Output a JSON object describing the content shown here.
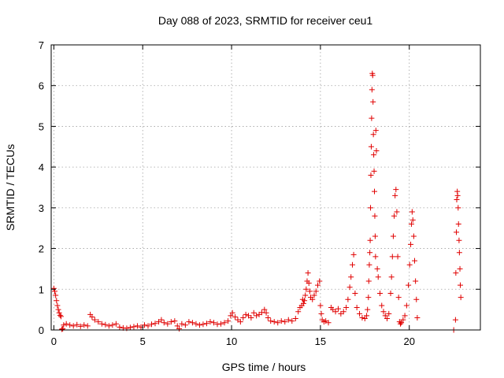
{
  "chart_data": {
    "type": "scatter",
    "title": "Day 088 of 2023, SRMTID for receiver ceu1",
    "xlabel": "GPS time / hours",
    "ylabel": "SRMTID / TECUs",
    "xlim": [
      -0.15,
      24
    ],
    "ylim": [
      0,
      7
    ],
    "xticks": [
      0,
      5,
      10,
      15,
      20
    ],
    "yticks": [
      0,
      1,
      2,
      3,
      4,
      5,
      6,
      7
    ],
    "grid": true,
    "marker": "plus",
    "color": "#e00000",
    "series": [
      {
        "name": "ceu1",
        "points": [
          [
            0.0,
            1.02
          ],
          [
            0.05,
            0.95
          ],
          [
            0.1,
            0.85
          ],
          [
            0.15,
            0.72
          ],
          [
            0.2,
            0.6
          ],
          [
            0.25,
            0.5
          ],
          [
            0.3,
            0.42
          ],
          [
            0.35,
            0.36
          ],
          [
            0.4,
            0.33
          ],
          [
            0.45,
            0.02
          ],
          [
            0.5,
            0.03
          ],
          [
            0.55,
            0.12
          ],
          [
            0.7,
            0.15
          ],
          [
            0.9,
            0.12
          ],
          [
            1.1,
            0.1
          ],
          [
            1.3,
            0.13
          ],
          [
            1.5,
            0.09
          ],
          [
            1.7,
            0.12
          ],
          [
            1.9,
            0.1
          ],
          [
            2.05,
            0.38
          ],
          [
            2.15,
            0.32
          ],
          [
            2.3,
            0.25
          ],
          [
            2.5,
            0.2
          ],
          [
            2.7,
            0.15
          ],
          [
            2.9,
            0.13
          ],
          [
            3.1,
            0.1
          ],
          [
            3.3,
            0.12
          ],
          [
            3.5,
            0.15
          ],
          [
            3.7,
            0.07
          ],
          [
            3.9,
            0.05
          ],
          [
            4.1,
            0.04
          ],
          [
            4.3,
            0.06
          ],
          [
            4.5,
            0.08
          ],
          [
            4.7,
            0.1
          ],
          [
            4.9,
            0.07
          ],
          [
            5.1,
            0.12
          ],
          [
            5.3,
            0.1
          ],
          [
            5.5,
            0.14
          ],
          [
            5.7,
            0.16
          ],
          [
            5.9,
            0.2
          ],
          [
            6.05,
            0.25
          ],
          [
            6.2,
            0.18
          ],
          [
            6.4,
            0.15
          ],
          [
            6.6,
            0.2
          ],
          [
            6.8,
            0.22
          ],
          [
            6.95,
            0.1
          ],
          [
            7.05,
            0.03
          ],
          [
            7.2,
            0.15
          ],
          [
            7.4,
            0.12
          ],
          [
            7.6,
            0.2
          ],
          [
            7.8,
            0.18
          ],
          [
            8.0,
            0.15
          ],
          [
            8.2,
            0.12
          ],
          [
            8.4,
            0.14
          ],
          [
            8.6,
            0.16
          ],
          [
            8.8,
            0.2
          ],
          [
            9.0,
            0.18
          ],
          [
            9.2,
            0.14
          ],
          [
            9.4,
            0.15
          ],
          [
            9.6,
            0.18
          ],
          [
            9.8,
            0.22
          ],
          [
            9.95,
            0.35
          ],
          [
            10.05,
            0.42
          ],
          [
            10.2,
            0.32
          ],
          [
            10.35,
            0.25
          ],
          [
            10.5,
            0.2
          ],
          [
            10.65,
            0.3
          ],
          [
            10.8,
            0.38
          ],
          [
            10.95,
            0.35
          ],
          [
            11.1,
            0.3
          ],
          [
            11.25,
            0.42
          ],
          [
            11.4,
            0.35
          ],
          [
            11.55,
            0.38
          ],
          [
            11.7,
            0.43
          ],
          [
            11.85,
            0.5
          ],
          [
            11.95,
            0.42
          ],
          [
            12.05,
            0.3
          ],
          [
            12.2,
            0.22
          ],
          [
            12.4,
            0.2
          ],
          [
            12.6,
            0.18
          ],
          [
            12.8,
            0.22
          ],
          [
            13.0,
            0.2
          ],
          [
            13.2,
            0.25
          ],
          [
            13.4,
            0.22
          ],
          [
            13.6,
            0.28
          ],
          [
            13.75,
            0.45
          ],
          [
            13.85,
            0.55
          ],
          [
            13.95,
            0.6
          ],
          [
            14.0,
            0.75
          ],
          [
            14.05,
            0.65
          ],
          [
            14.1,
            0.72
          ],
          [
            14.15,
            0.85
          ],
          [
            14.2,
            1.0
          ],
          [
            14.25,
            1.2
          ],
          [
            14.3,
            1.4
          ],
          [
            14.35,
            1.15
          ],
          [
            14.4,
            0.95
          ],
          [
            14.45,
            0.8
          ],
          [
            14.55,
            0.75
          ],
          [
            14.65,
            0.85
          ],
          [
            14.75,
            0.95
          ],
          [
            14.85,
            1.1
          ],
          [
            14.95,
            1.2
          ],
          [
            15.0,
            0.6
          ],
          [
            15.05,
            0.4
          ],
          [
            15.1,
            0.25
          ],
          [
            15.2,
            0.2
          ],
          [
            15.3,
            0.22
          ],
          [
            15.45,
            0.18
          ],
          [
            15.6,
            0.55
          ],
          [
            15.7,
            0.5
          ],
          [
            15.85,
            0.45
          ],
          [
            16.0,
            0.52
          ],
          [
            16.15,
            0.4
          ],
          [
            16.3,
            0.45
          ],
          [
            16.45,
            0.55
          ],
          [
            16.55,
            0.75
          ],
          [
            16.65,
            1.05
          ],
          [
            16.72,
            1.3
          ],
          [
            16.8,
            1.6
          ],
          [
            16.87,
            1.85
          ],
          [
            16.95,
            0.9
          ],
          [
            17.05,
            0.55
          ],
          [
            17.2,
            0.4
          ],
          [
            17.35,
            0.3
          ],
          [
            17.5,
            0.28
          ],
          [
            17.6,
            0.35
          ],
          [
            17.65,
            0.5
          ],
          [
            17.7,
            0.8
          ],
          [
            17.72,
            1.2
          ],
          [
            17.75,
            1.6
          ],
          [
            17.78,
            1.9
          ],
          [
            17.8,
            2.2
          ],
          [
            17.82,
            3.0
          ],
          [
            17.84,
            3.8
          ],
          [
            17.86,
            4.5
          ],
          [
            17.88,
            5.2
          ],
          [
            17.9,
            5.9
          ],
          [
            17.92,
            6.3
          ],
          [
            17.94,
            6.25
          ],
          [
            17.96,
            5.6
          ],
          [
            17.98,
            4.8
          ],
          [
            18.0,
            4.3
          ],
          [
            18.02,
            3.9
          ],
          [
            18.04,
            3.4
          ],
          [
            18.06,
            2.8
          ],
          [
            18.08,
            2.3
          ],
          [
            18.1,
            1.8
          ],
          [
            18.12,
            4.9
          ],
          [
            18.15,
            4.4
          ],
          [
            18.2,
            1.5
          ],
          [
            18.25,
            1.3
          ],
          [
            18.35,
            0.9
          ],
          [
            18.45,
            0.6
          ],
          [
            18.55,
            0.45
          ],
          [
            18.65,
            0.35
          ],
          [
            18.75,
            0.28
          ],
          [
            18.85,
            0.4
          ],
          [
            18.95,
            0.9
          ],
          [
            19.0,
            1.3
          ],
          [
            19.05,
            1.8
          ],
          [
            19.1,
            2.3
          ],
          [
            19.15,
            2.8
          ],
          [
            19.2,
            3.3
          ],
          [
            19.25,
            3.45
          ],
          [
            19.3,
            2.9
          ],
          [
            19.35,
            1.8
          ],
          [
            19.4,
            0.8
          ],
          [
            19.45,
            0.2
          ],
          [
            19.5,
            0.15
          ],
          [
            19.55,
            0.18
          ],
          [
            19.65,
            0.25
          ],
          [
            19.75,
            0.35
          ],
          [
            19.85,
            0.6
          ],
          [
            19.95,
            1.1
          ],
          [
            20.02,
            1.6
          ],
          [
            20.08,
            2.1
          ],
          [
            20.12,
            2.6
          ],
          [
            20.16,
            2.9
          ],
          [
            20.2,
            2.7
          ],
          [
            20.25,
            2.3
          ],
          [
            20.3,
            1.7
          ],
          [
            20.35,
            1.2
          ],
          [
            20.4,
            0.75
          ],
          [
            20.45,
            0.3
          ],
          [
            22.5,
            0.0
          ],
          [
            22.6,
            0.25
          ],
          [
            22.62,
            1.4
          ],
          [
            22.65,
            2.4
          ],
          [
            22.67,
            3.2
          ],
          [
            22.7,
            3.4
          ],
          [
            22.72,
            3.3
          ],
          [
            22.75,
            3.0
          ],
          [
            22.77,
            2.6
          ],
          [
            22.8,
            2.2
          ],
          [
            22.82,
            1.9
          ],
          [
            22.85,
            1.5
          ],
          [
            22.87,
            1.1
          ],
          [
            22.9,
            0.8
          ]
        ]
      }
    ]
  }
}
